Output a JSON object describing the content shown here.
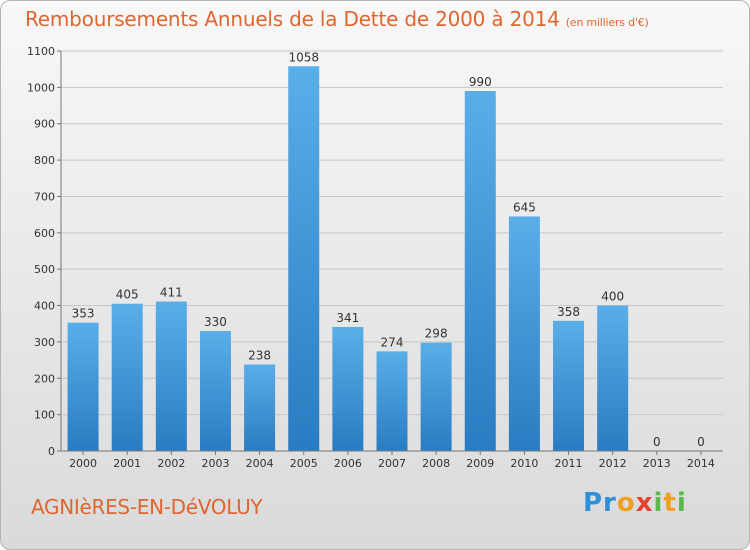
{
  "header": {
    "title": "Remboursements Annuels de la Dette de 2000 à 2014",
    "subtitle": "(en milliers d'€)"
  },
  "footer": {
    "commune": "AGNIèRES-EN-DéVOLUY",
    "logo": "Proxiti"
  },
  "colors": {
    "title": "#e0662f",
    "bar_top": "#5aaee8",
    "bar_bottom": "#2a7cc2",
    "grid": "#c8c8c8",
    "axis": "#777777"
  },
  "chart_data": {
    "type": "bar",
    "categories": [
      "2000",
      "2001",
      "2002",
      "2003",
      "2004",
      "2005",
      "2006",
      "2007",
      "2008",
      "2009",
      "2010",
      "2011",
      "2012",
      "2013",
      "2014"
    ],
    "values": [
      353,
      405,
      411,
      330,
      238,
      1058,
      341,
      274,
      298,
      990,
      645,
      358,
      400,
      0,
      0
    ],
    "ylim": [
      0,
      1100
    ],
    "yticks": [
      0,
      100,
      200,
      300,
      400,
      500,
      600,
      700,
      800,
      900,
      1000,
      1100
    ],
    "grid": true,
    "data_labels": true,
    "title": "Remboursements Annuels de la Dette de 2000 à 2014",
    "subtitle": "(en milliers d'€)"
  }
}
